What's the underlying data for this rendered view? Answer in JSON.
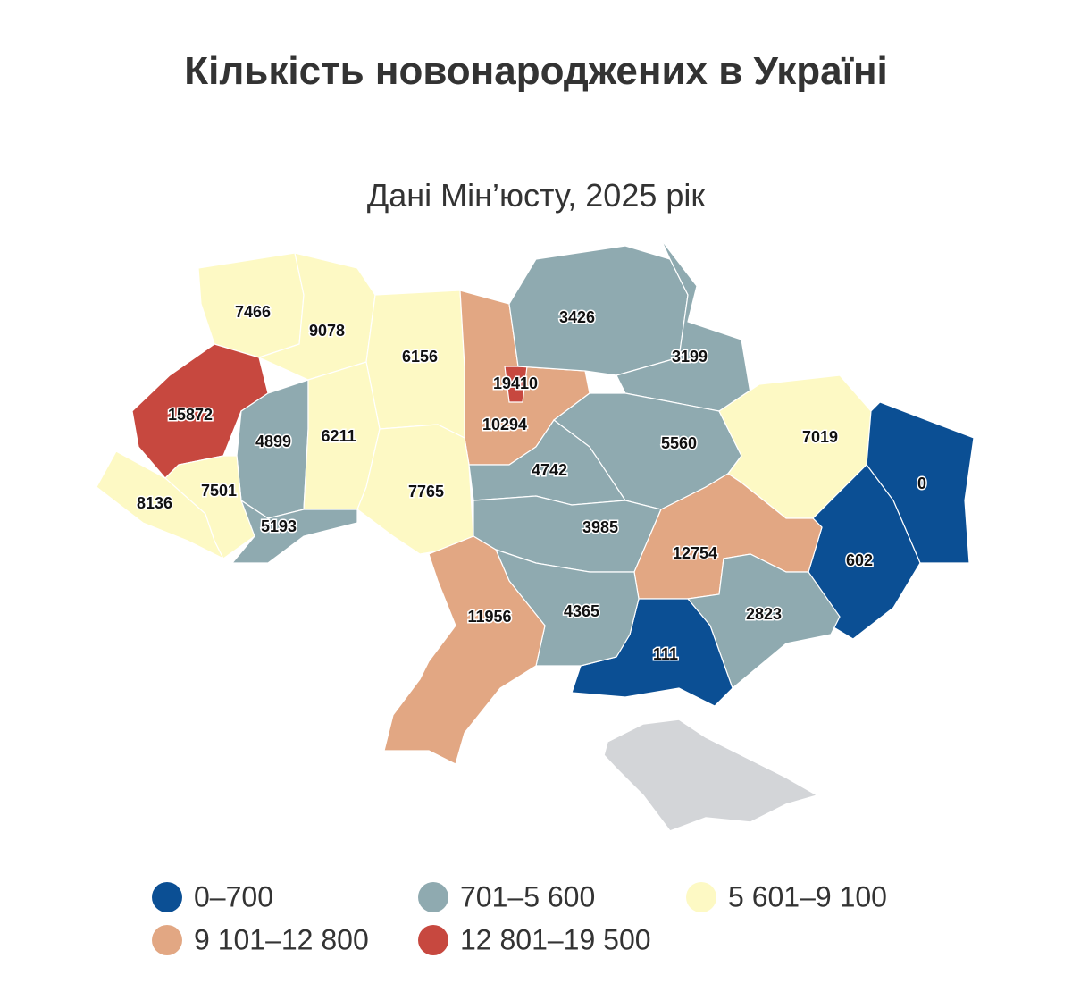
{
  "title": "Кількість новонароджених в Україні",
  "subtitle": "Дані Мін’юсту, 2025 рік",
  "regions": [
    {
      "value": 7466,
      "color": "#fdf9c4"
    },
    {
      "value": 9078,
      "color": "#fdf9c4"
    },
    {
      "value": 6156,
      "color": "#fdf9c4"
    },
    {
      "value": 10294,
      "color": "#e2a783"
    },
    {
      "value": 19410,
      "color": "#c7483f"
    },
    {
      "value": 3426,
      "color": "#8faab0"
    },
    {
      "value": 3199,
      "color": "#8faab0"
    },
    {
      "value": 5560,
      "color": "#8faab0"
    },
    {
      "value": 7019,
      "color": "#fdf9c4"
    },
    {
      "value": 0,
      "color": "#0b4f94"
    },
    {
      "value": 602,
      "color": "#0b4f94"
    },
    {
      "value": 15872,
      "color": "#c7483f"
    },
    {
      "value": 4899,
      "color": "#8faab0"
    },
    {
      "value": 6211,
      "color": "#fdf9c4"
    },
    {
      "value": 7765,
      "color": "#fdf9c4"
    },
    {
      "value": 4742,
      "color": "#8faab0"
    },
    {
      "value": 3985,
      "color": "#8faab0"
    },
    {
      "value": 12754,
      "color": "#e2a783"
    },
    {
      "value": 2823,
      "color": "#8faab0"
    },
    {
      "value": 111,
      "color": "#0b4f94"
    },
    {
      "value": 4365,
      "color": "#8faab0"
    },
    {
      "value": 11956,
      "color": "#e2a783"
    },
    {
      "value": 8136,
      "color": "#fdf9c4"
    },
    {
      "value": 7501,
      "color": "#fdf9c4"
    },
    {
      "value": 5193,
      "color": "#8faab0"
    }
  ],
  "legend": [
    {
      "label": "0–700",
      "color": "#0b4f94"
    },
    {
      "label": "701–5 600",
      "color": "#8faab0"
    },
    {
      "label": "5 601–9 100",
      "color": "#fdf9c4"
    },
    {
      "label": "9 101–12 800",
      "color": "#e2a783"
    },
    {
      "label": "12 801–19 500",
      "color": "#c7483f"
    }
  ]
}
